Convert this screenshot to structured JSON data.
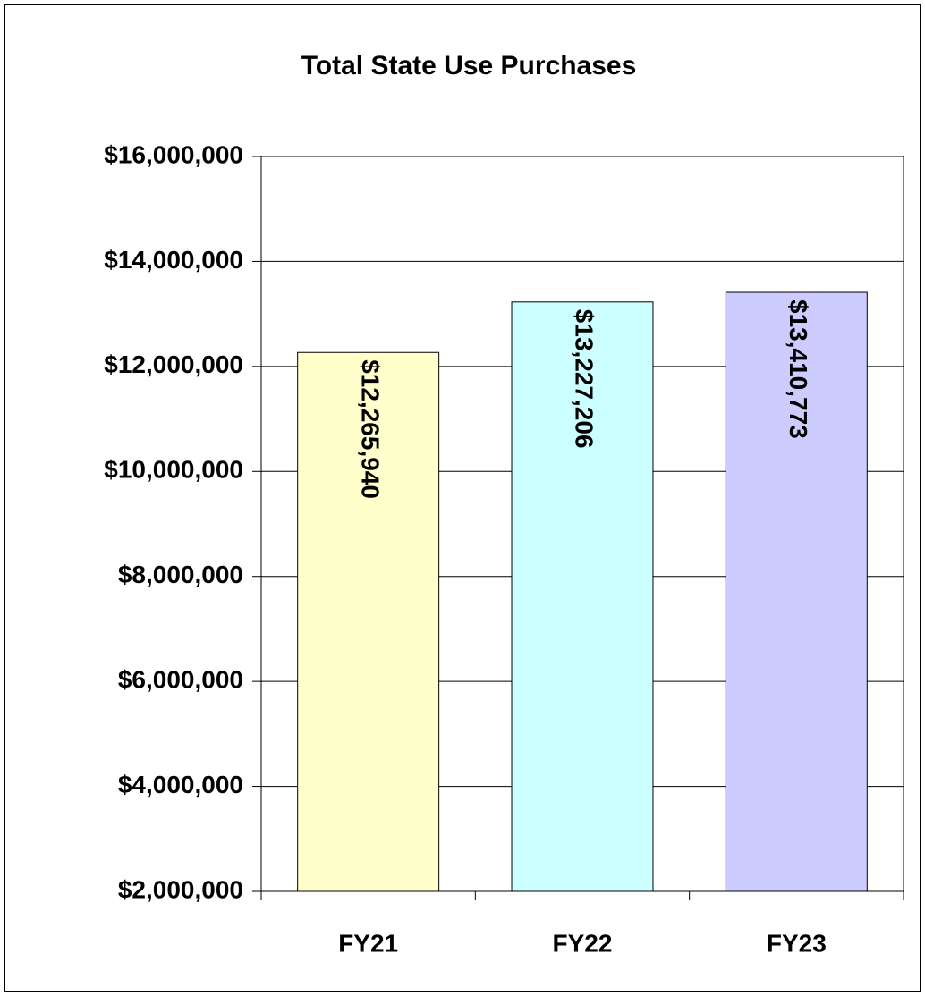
{
  "chart_data": {
    "type": "bar",
    "title": "Total State Use Purchases",
    "categories": [
      "FY21",
      "FY22",
      "FY23"
    ],
    "values": [
      12265940,
      13227206,
      13410773
    ],
    "value_labels": [
      "$12,265,940",
      "$13,227,206",
      "$13,410,773"
    ],
    "colors": [
      "#ffffcc",
      "#ccffff",
      "#ccccff"
    ],
    "ylim": [
      2000000,
      16000000
    ],
    "yticks": [
      {
        "value": 2000000,
        "label": "$2,000,000"
      },
      {
        "value": 4000000,
        "label": "$4,000,000"
      },
      {
        "value": 6000000,
        "label": "$6,000,000"
      },
      {
        "value": 8000000,
        "label": "$8,000,000"
      },
      {
        "value": 10000000,
        "label": "$10,000,000"
      },
      {
        "value": 12000000,
        "label": "$12,000,000"
      },
      {
        "value": 14000000,
        "label": "$14,000,000"
      },
      {
        "value": 16000000,
        "label": "$16,000,000"
      }
    ],
    "grid": true
  }
}
